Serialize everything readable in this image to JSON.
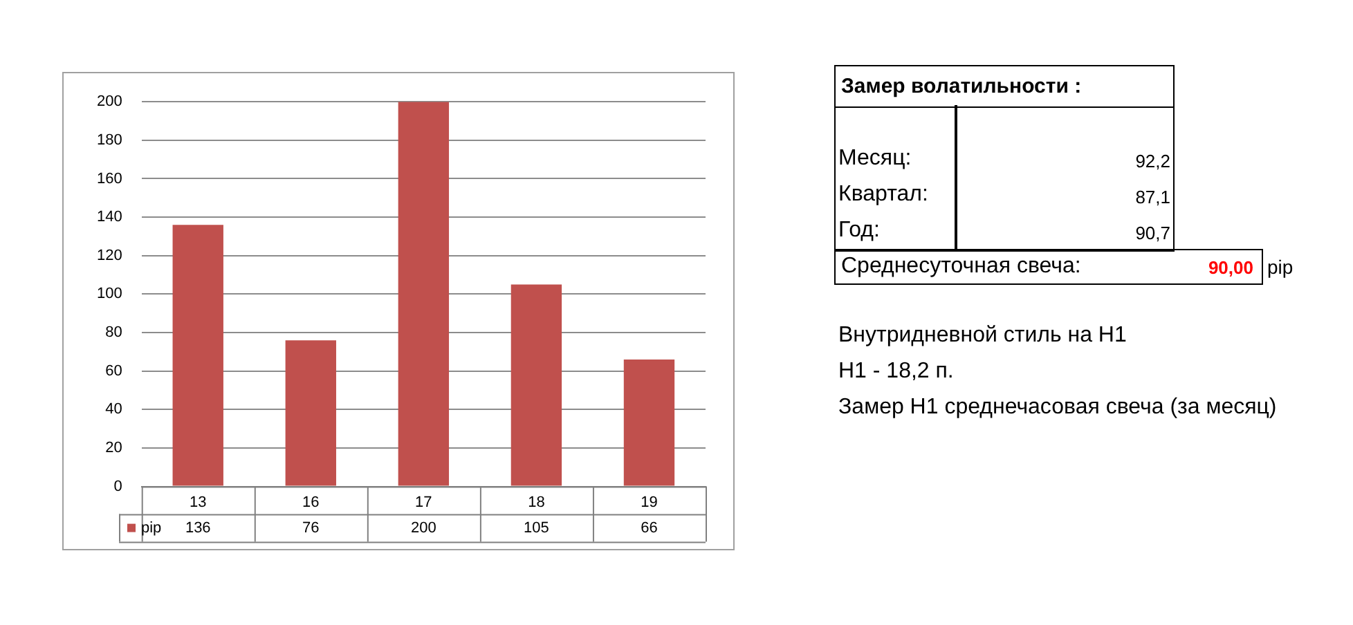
{
  "chart_data": {
    "type": "bar",
    "categories": [
      "13",
      "16",
      "17",
      "18",
      "19"
    ],
    "series": [
      {
        "name": "pip",
        "color": "#c0504d",
        "values": [
          136,
          76,
          200,
          105,
          66
        ]
      }
    ],
    "ylim": [
      0,
      200
    ],
    "yticks": [
      0,
      20,
      40,
      60,
      80,
      100,
      120,
      140,
      160,
      180,
      200
    ],
    "grid": "y",
    "legend": "bottom left",
    "data_labels": true,
    "annotations": [
      "Замер  волатильности  :",
      "Месяц:",
      "92,2",
      "Квартал:",
      "87,1",
      "Год:",
      "90,7",
      "Среднесуточная свеча:",
      "90,00",
      "pip",
      "Внутридневной стиль на H1",
      "H1 - 18,2 п.",
      "Замер H1 среднечасовая свеча (за месяц)"
    ]
  }
}
